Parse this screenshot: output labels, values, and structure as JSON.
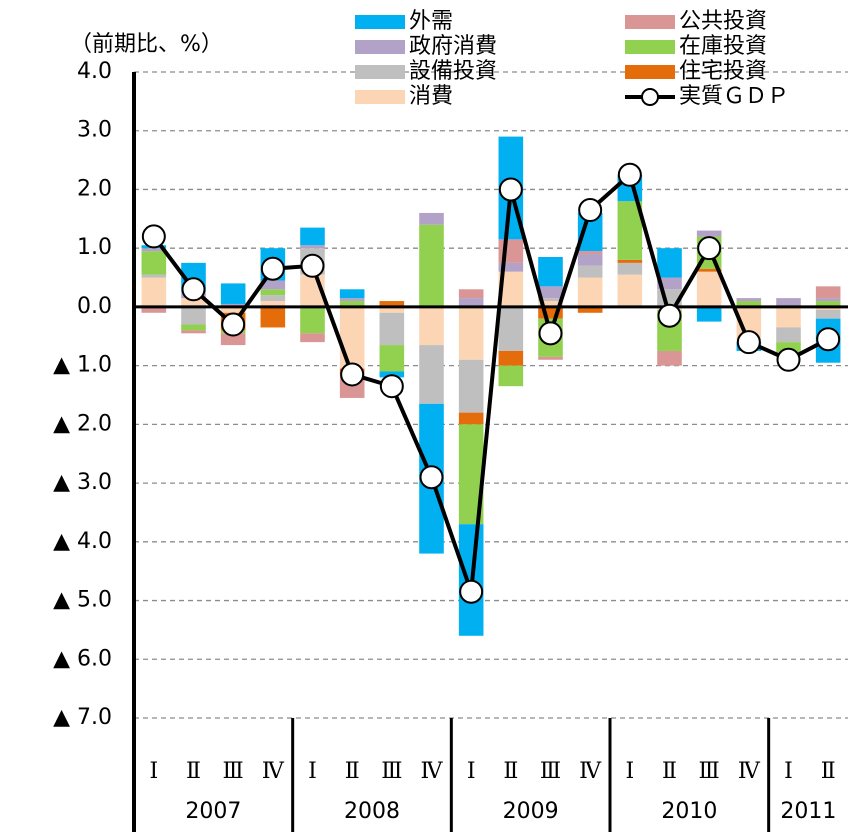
{
  "chart_data": {
    "type": "stacked-bar-line",
    "y_axis_label": "（前期比、%）",
    "categories": [
      "Ⅰ",
      "Ⅱ",
      "Ⅲ",
      "Ⅳ",
      "Ⅰ",
      "Ⅱ",
      "Ⅲ",
      "Ⅳ",
      "Ⅰ",
      "Ⅱ",
      "Ⅲ",
      "Ⅳ",
      "Ⅰ",
      "Ⅱ",
      "Ⅲ",
      "Ⅳ",
      "Ⅰ",
      "Ⅱ"
    ],
    "groups": [
      {
        "label": "2007",
        "span": 4
      },
      {
        "label": "2008",
        "span": 4
      },
      {
        "label": "2009",
        "span": 4
      },
      {
        "label": "2010",
        "span": 4
      },
      {
        "label": "2011",
        "span": 2
      }
    ],
    "ylim": [
      -7,
      4
    ],
    "yticks": [
      {
        "value": -7,
        "label": "▲ 7.0"
      },
      {
        "value": -6,
        "label": "▲ 6.0"
      },
      {
        "value": -5,
        "label": "▲ 5.0"
      },
      {
        "value": -4,
        "label": "▲ 4.0"
      },
      {
        "value": -3,
        "label": "▲ 3.0"
      },
      {
        "value": -2,
        "label": "▲ 2.0"
      },
      {
        "value": -1,
        "label": "▲ 1.0"
      },
      {
        "value": 0,
        "label": "0.0"
      },
      {
        "value": 1,
        "label": "1.0"
      },
      {
        "value": 2,
        "label": "2.0"
      },
      {
        "value": 3,
        "label": "3.0"
      },
      {
        "value": 4,
        "label": "4.0"
      }
    ],
    "grid": true,
    "series": [
      {
        "name": "外需",
        "color": "#00b0f0",
        "values": [
          0.05,
          0.5,
          0.35,
          0.55,
          0.3,
          0.15,
          -0.1,
          -2.55,
          -1.9,
          1.75,
          0.5,
          0.65,
          0.45,
          0.5,
          -0.25,
          -0.15,
          0,
          -0.75
        ]
      },
      {
        "name": "公共投資",
        "color": "#d99694",
        "values": [
          -0.1,
          -0.05,
          -0.2,
          0,
          -0.15,
          -0.4,
          0,
          0,
          0.15,
          0.4,
          -0.05,
          0.05,
          0,
          -0.25,
          0,
          0,
          0,
          0.2
        ]
      },
      {
        "name": "政府消費",
        "color": "#b3a2c7",
        "values": [
          0.05,
          0.1,
          0.05,
          0.15,
          0.05,
          0.05,
          0,
          0.2,
          0.15,
          0.15,
          0.2,
          0.2,
          0,
          0.2,
          0.1,
          0.05,
          0.15,
          0.05
        ]
      },
      {
        "name": "在庫投資",
        "color": "#92d050",
        "values": [
          0.4,
          -0.1,
          -0.05,
          0.1,
          -0.45,
          0.1,
          -0.45,
          1.4,
          -1.7,
          -0.35,
          -0.65,
          0,
          1.0,
          -0.7,
          0.55,
          0.1,
          -0.2,
          0.1
        ]
      },
      {
        "name": "設備投資",
        "color": "#bfbfbf",
        "values": [
          0.05,
          -0.3,
          0,
          0.1,
          0.45,
          0,
          -0.55,
          -1.0,
          -0.9,
          -0.75,
          0.05,
          0.2,
          0.2,
          0.3,
          0,
          0,
          -0.25,
          -0.15
        ]
      },
      {
        "name": "住宅投資",
        "color": "#e46c0a",
        "values": [
          0,
          0,
          -0.3,
          -0.35,
          0,
          -0.1,
          0.1,
          0,
          -0.2,
          -0.25,
          -0.2,
          -0.1,
          0.05,
          0,
          0.05,
          0,
          0,
          0
        ]
      },
      {
        "name": "消費",
        "color": "#fcd5b5",
        "values": [
          0.5,
          0.15,
          -0.1,
          0.1,
          0.55,
          -1.05,
          -0.1,
          -0.65,
          -0.9,
          0.6,
          0.1,
          0.5,
          0.55,
          -0.05,
          0.6,
          -0.6,
          -0.35,
          -0.05
        ]
      },
      {
        "name": "実質ＧＤＰ",
        "type": "line",
        "color": "#000000",
        "values": [
          1.2,
          0.3,
          -0.3,
          0.65,
          0.7,
          -1.15,
          -1.35,
          -2.9,
          -4.85,
          2.0,
          -0.45,
          1.65,
          2.25,
          -0.15,
          1.0,
          -0.6,
          -0.9,
          -0.55
        ]
      }
    ]
  }
}
